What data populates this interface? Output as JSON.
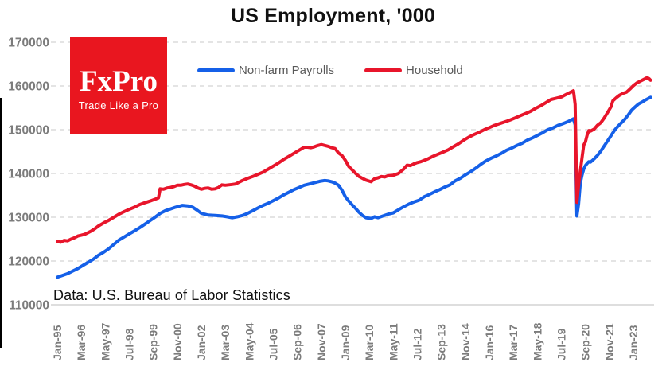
{
  "logo": {
    "brand": "FxPro",
    "tagline": "Trade Like a Pro",
    "bg_color": "#e9161f",
    "text_color": "#ffffff"
  },
  "chart_data": {
    "type": "line",
    "title": "US Employment, '000",
    "source_note": "Data: U.S. Bureau of Labor Statistics",
    "x_unit": "months since Jan-1995",
    "ylim": [
      110000,
      170000
    ],
    "y_ticks": [
      170000,
      160000,
      150000,
      140000,
      130000,
      120000,
      110000
    ],
    "x_tick_labels": [
      "Jan-95",
      "Mar-96",
      "May-97",
      "Jul-98",
      "Sep-99",
      "Nov-00",
      "Jan-02",
      "Mar-03",
      "May-04",
      "Jul-05",
      "Sep-06",
      "Nov-07",
      "Jan-09",
      "Mar-10",
      "May-11",
      "Jul-12",
      "Sep-13",
      "Nov-14",
      "Jan-16",
      "Mar-17",
      "May-18",
      "Jul-19",
      "Sep-20",
      "Nov-21",
      "Jan-23"
    ],
    "x_tick_months": [
      0,
      14,
      28,
      42,
      56,
      70,
      84,
      98,
      112,
      126,
      140,
      154,
      168,
      182,
      196,
      210,
      224,
      238,
      252,
      266,
      280,
      294,
      308,
      322,
      336
    ],
    "grid": "horizontal-dashed",
    "grid_color": "#dcdcdc",
    "axis_color": "#d4d4d4",
    "tick_label_color": "#7c7c7c",
    "legend_position": "top",
    "series": [
      {
        "name": "Non-farm Payrolls",
        "color": "#1560e8",
        "points": [
          [
            0,
            116300
          ],
          [
            3,
            116700
          ],
          [
            6,
            117100
          ],
          [
            9,
            117700
          ],
          [
            12,
            118300
          ],
          [
            15,
            119000
          ],
          [
            18,
            119700
          ],
          [
            21,
            120400
          ],
          [
            24,
            121300
          ],
          [
            27,
            122000
          ],
          [
            30,
            122800
          ],
          [
            33,
            123800
          ],
          [
            36,
            124800
          ],
          [
            39,
            125500
          ],
          [
            42,
            126200
          ],
          [
            45,
            126900
          ],
          [
            48,
            127600
          ],
          [
            51,
            128400
          ],
          [
            54,
            129200
          ],
          [
            57,
            130000
          ],
          [
            60,
            130900
          ],
          [
            63,
            131500
          ],
          [
            66,
            131900
          ],
          [
            69,
            132300
          ],
          [
            73,
            132700
          ],
          [
            76,
            132600
          ],
          [
            79,
            132300
          ],
          [
            82,
            131500
          ],
          [
            84,
            130900
          ],
          [
            88,
            130500
          ],
          [
            92,
            130400
          ],
          [
            96,
            130300
          ],
          [
            99,
            130100
          ],
          [
            102,
            129900
          ],
          [
            105,
            130100
          ],
          [
            108,
            130400
          ],
          [
            111,
            130900
          ],
          [
            114,
            131500
          ],
          [
            117,
            132100
          ],
          [
            120,
            132700
          ],
          [
            123,
            133200
          ],
          [
            126,
            133800
          ],
          [
            129,
            134400
          ],
          [
            132,
            135100
          ],
          [
            135,
            135700
          ],
          [
            138,
            136300
          ],
          [
            141,
            136800
          ],
          [
            144,
            137300
          ],
          [
            147,
            137600
          ],
          [
            150,
            137900
          ],
          [
            153,
            138200
          ],
          [
            156,
            138400
          ],
          [
            158,
            138300
          ],
          [
            160,
            138100
          ],
          [
            162,
            137800
          ],
          [
            164,
            137300
          ],
          [
            166,
            136200
          ],
          [
            168,
            134700
          ],
          [
            170,
            133700
          ],
          [
            172,
            132800
          ],
          [
            174,
            132000
          ],
          [
            176,
            131100
          ],
          [
            178,
            130400
          ],
          [
            180,
            129900
          ],
          [
            183,
            129700
          ],
          [
            185,
            130100
          ],
          [
            187,
            129900
          ],
          [
            190,
            130300
          ],
          [
            193,
            130700
          ],
          [
            196,
            131000
          ],
          [
            199,
            131700
          ],
          [
            202,
            132400
          ],
          [
            205,
            133000
          ],
          [
            208,
            133500
          ],
          [
            211,
            133900
          ],
          [
            214,
            134700
          ],
          [
            217,
            135200
          ],
          [
            220,
            135800
          ],
          [
            223,
            136300
          ],
          [
            226,
            136900
          ],
          [
            229,
            137400
          ],
          [
            232,
            138300
          ],
          [
            235,
            138900
          ],
          [
            238,
            139700
          ],
          [
            241,
            140400
          ],
          [
            244,
            141200
          ],
          [
            247,
            142100
          ],
          [
            250,
            142900
          ],
          [
            253,
            143500
          ],
          [
            256,
            144000
          ],
          [
            259,
            144600
          ],
          [
            262,
            145300
          ],
          [
            265,
            145800
          ],
          [
            268,
            146400
          ],
          [
            271,
            146900
          ],
          [
            274,
            147600
          ],
          [
            277,
            148100
          ],
          [
            280,
            148700
          ],
          [
            283,
            149300
          ],
          [
            286,
            150000
          ],
          [
            289,
            150400
          ],
          [
            292,
            151000
          ],
          [
            295,
            151400
          ],
          [
            298,
            151900
          ],
          [
            301,
            152500
          ],
          [
            302,
            151100
          ],
          [
            303,
            130300
          ],
          [
            304,
            133000
          ],
          [
            305,
            137800
          ],
          [
            306,
            139600
          ],
          [
            307,
            141000
          ],
          [
            308,
            141800
          ],
          [
            309,
            142300
          ],
          [
            310,
            142700
          ],
          [
            311,
            142600
          ],
          [
            313,
            143300
          ],
          [
            315,
            144100
          ],
          [
            317,
            145100
          ],
          [
            319,
            146300
          ],
          [
            321,
            147500
          ],
          [
            323,
            148700
          ],
          [
            325,
            149900
          ],
          [
            327,
            150800
          ],
          [
            329,
            151600
          ],
          [
            331,
            152400
          ],
          [
            333,
            153400
          ],
          [
            335,
            154500
          ],
          [
            337,
            155200
          ],
          [
            339,
            155900
          ],
          [
            341,
            156300
          ],
          [
            343,
            156800
          ],
          [
            345,
            157200
          ],
          [
            346,
            157400
          ]
        ]
      },
      {
        "name": "Household",
        "color": "#e8152b",
        "points": [
          [
            0,
            124500
          ],
          [
            2,
            124300
          ],
          [
            4,
            124700
          ],
          [
            6,
            124600
          ],
          [
            8,
            125000
          ],
          [
            10,
            125300
          ],
          [
            12,
            125700
          ],
          [
            14,
            125900
          ],
          [
            16,
            126100
          ],
          [
            18,
            126500
          ],
          [
            20,
            126900
          ],
          [
            22,
            127400
          ],
          [
            24,
            128000
          ],
          [
            27,
            128700
          ],
          [
            30,
            129300
          ],
          [
            33,
            130000
          ],
          [
            36,
            130700
          ],
          [
            39,
            131300
          ],
          [
            42,
            131800
          ],
          [
            45,
            132300
          ],
          [
            48,
            132900
          ],
          [
            51,
            133300
          ],
          [
            54,
            133700
          ],
          [
            57,
            134100
          ],
          [
            59,
            134400
          ],
          [
            60,
            136500
          ],
          [
            62,
            136400
          ],
          [
            64,
            136700
          ],
          [
            66,
            136800
          ],
          [
            68,
            137000
          ],
          [
            70,
            137300
          ],
          [
            72,
            137300
          ],
          [
            74,
            137500
          ],
          [
            76,
            137600
          ],
          [
            78,
            137400
          ],
          [
            80,
            137100
          ],
          [
            82,
            136700
          ],
          [
            84,
            136400
          ],
          [
            86,
            136600
          ],
          [
            88,
            136700
          ],
          [
            90,
            136400
          ],
          [
            92,
            136500
          ],
          [
            94,
            136800
          ],
          [
            96,
            137400
          ],
          [
            98,
            137300
          ],
          [
            100,
            137400
          ],
          [
            102,
            137500
          ],
          [
            104,
            137600
          ],
          [
            106,
            138000
          ],
          [
            108,
            138400
          ],
          [
            111,
            138900
          ],
          [
            114,
            139300
          ],
          [
            117,
            139800
          ],
          [
            120,
            140300
          ],
          [
            123,
            141000
          ],
          [
            126,
            141700
          ],
          [
            129,
            142400
          ],
          [
            132,
            143200
          ],
          [
            135,
            143900
          ],
          [
            138,
            144600
          ],
          [
            141,
            145300
          ],
          [
            144,
            146000
          ],
          [
            146,
            146000
          ],
          [
            148,
            145900
          ],
          [
            150,
            146100
          ],
          [
            152,
            146400
          ],
          [
            154,
            146600
          ],
          [
            156,
            146400
          ],
          [
            158,
            146200
          ],
          [
            160,
            145900
          ],
          [
            162,
            145700
          ],
          [
            164,
            144700
          ],
          [
            166,
            144100
          ],
          [
            168,
            143000
          ],
          [
            170,
            141600
          ],
          [
            172,
            140800
          ],
          [
            174,
            140000
          ],
          [
            176,
            139300
          ],
          [
            178,
            138900
          ],
          [
            180,
            138500
          ],
          [
            183,
            138100
          ],
          [
            185,
            138800
          ],
          [
            187,
            139000
          ],
          [
            189,
            139300
          ],
          [
            191,
            139200
          ],
          [
            193,
            139500
          ],
          [
            196,
            139600
          ],
          [
            199,
            140000
          ],
          [
            202,
            141000
          ],
          [
            204,
            141900
          ],
          [
            206,
            141800
          ],
          [
            208,
            142200
          ],
          [
            210,
            142500
          ],
          [
            212,
            142700
          ],
          [
            214,
            143000
          ],
          [
            216,
            143300
          ],
          [
            219,
            143900
          ],
          [
            222,
            144400
          ],
          [
            225,
            144900
          ],
          [
            228,
            145400
          ],
          [
            231,
            146100
          ],
          [
            234,
            146800
          ],
          [
            237,
            147600
          ],
          [
            240,
            148300
          ],
          [
            243,
            148900
          ],
          [
            246,
            149400
          ],
          [
            249,
            150000
          ],
          [
            252,
            150500
          ],
          [
            255,
            151000
          ],
          [
            258,
            151400
          ],
          [
            261,
            151800
          ],
          [
            264,
            152200
          ],
          [
            267,
            152700
          ],
          [
            270,
            153200
          ],
          [
            273,
            153700
          ],
          [
            276,
            154200
          ],
          [
            279,
            154900
          ],
          [
            282,
            155500
          ],
          [
            285,
            156200
          ],
          [
            288,
            156900
          ],
          [
            291,
            157200
          ],
          [
            294,
            157500
          ],
          [
            296,
            157900
          ],
          [
            298,
            158300
          ],
          [
            301,
            158900
          ],
          [
            302,
            155800
          ],
          [
            303,
            133400
          ],
          [
            304,
            137300
          ],
          [
            305,
            140500
          ],
          [
            306,
            143500
          ],
          [
            307,
            146500
          ],
          [
            308,
            147200
          ],
          [
            309,
            148800
          ],
          [
            310,
            149800
          ],
          [
            311,
            149700
          ],
          [
            313,
            150100
          ],
          [
            315,
            151000
          ],
          [
            317,
            151600
          ],
          [
            319,
            152700
          ],
          [
            321,
            154000
          ],
          [
            323,
            155300
          ],
          [
            324,
            156600
          ],
          [
            326,
            157300
          ],
          [
            328,
            157900
          ],
          [
            330,
            158300
          ],
          [
            332,
            158600
          ],
          [
            334,
            159300
          ],
          [
            336,
            160100
          ],
          [
            338,
            160700
          ],
          [
            340,
            161100
          ],
          [
            342,
            161500
          ],
          [
            344,
            161900
          ],
          [
            345,
            161700
          ],
          [
            346,
            161300
          ]
        ]
      }
    ]
  }
}
